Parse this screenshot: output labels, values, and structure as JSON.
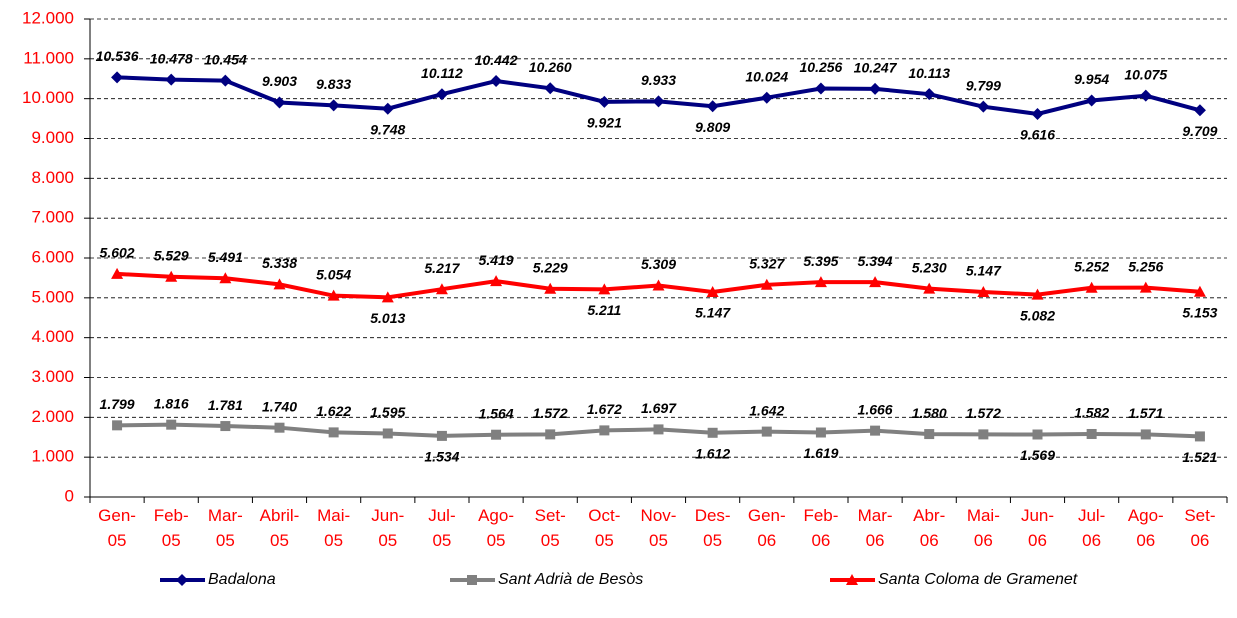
{
  "chart_data": {
    "type": "line",
    "categories": [
      "Gen-05",
      "Feb-05",
      "Mar-05",
      "Abril-05",
      "Mai-05",
      "Jun-05",
      "Jul-05",
      "Ago-05",
      "Set-05",
      "Oct-05",
      "Nov-05",
      "Des-05",
      "Gen-06",
      "Feb-06",
      "Mar-06",
      "Abr-06",
      "Mai-06",
      "Jun-06",
      "Jul-06",
      "Ago-06",
      "Set-06"
    ],
    "series": [
      {
        "name": "Badalona",
        "color": "#000080",
        "marker": "diamond",
        "values": [
          10536,
          10478,
          10454,
          9903,
          9833,
          9748,
          10112,
          10442,
          10260,
          9921,
          9933,
          9809,
          10024,
          10256,
          10247,
          10113,
          9799,
          9616,
          9954,
          10075,
          9709
        ],
        "value_labels": [
          "10.536",
          "10.478",
          "10.454",
          "9.903",
          "9.833",
          "9.748",
          "10.112",
          "10.442",
          "10.260",
          "9.921",
          "9.933",
          "9.809",
          "10.024",
          "10.256",
          "10.247",
          "10.113",
          "9.799",
          "9.616",
          "9.954",
          "10.075",
          "9.709"
        ]
      },
      {
        "name": "Sant Adrià de Besòs",
        "color": "#808080",
        "marker": "square",
        "values": [
          1799,
          1816,
          1781,
          1740,
          1622,
          1595,
          1534,
          1564,
          1572,
          1672,
          1697,
          1612,
          1642,
          1619,
          1666,
          1580,
          1572,
          1569,
          1582,
          1571,
          1521
        ],
        "value_labels": [
          "1.799",
          "1.816",
          "1.781",
          "1.740",
          "1.622",
          "1.595",
          "1.534",
          "1.564",
          "1.572",
          "1.672",
          "1.697",
          "1.612",
          "1.642",
          "1.619",
          "1.666",
          "1.580",
          "1.572",
          "1.569",
          "1.582",
          "1.571",
          "1.521"
        ]
      },
      {
        "name": "Santa Coloma de Gramenet",
        "color": "#ff0000",
        "marker": "triangle",
        "values": [
          5602,
          5529,
          5491,
          5338,
          5054,
          5013,
          5217,
          5419,
          5229,
          5211,
          5309,
          5147,
          5327,
          5395,
          5394,
          5230,
          5147,
          5082,
          5252,
          5256,
          5153
        ],
        "value_labels": [
          "5.602",
          "5.529",
          "5.491",
          "5.338",
          "5.054",
          "5.013",
          "5.217",
          "5.419",
          "5.229",
          "5.211",
          "5.309",
          "5.147",
          "5.327",
          "5.395",
          "5.394",
          "5.230",
          "5.147",
          "5.082",
          "5.252",
          "5.256",
          "5.153"
        ]
      }
    ],
    "ylim": [
      0,
      12000
    ],
    "yticks": [
      0,
      {
        "value": 1000,
        "label": "1.000"
      },
      {
        "value": 2000,
        "label": "2.000"
      },
      {
        "value": 3000,
        "label": "3.000"
      },
      {
        "value": 4000,
        "label": "4.000"
      },
      {
        "value": 5000,
        "label": "5.000"
      },
      {
        "value": 6000,
        "label": "6.000"
      },
      {
        "value": 7000,
        "label": "7.000"
      },
      {
        "value": 8000,
        "label": "8.000"
      },
      {
        "value": 9000,
        "label": "9.000"
      },
      {
        "value": 10000,
        "label": "10.000"
      },
      {
        "value": 11000,
        "label": "11.000"
      },
      {
        "value": 12000,
        "label": "12.000"
      }
    ],
    "grid": true,
    "legend": "bottom",
    "axis_color": "#ff0000"
  }
}
